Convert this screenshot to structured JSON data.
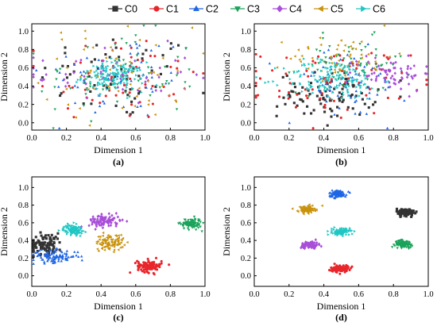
{
  "legend": {
    "entries": [
      {
        "label": "C0",
        "color": "#333333",
        "marker": "square"
      },
      {
        "label": "C1",
        "color": "#e8262b",
        "marker": "circle"
      },
      {
        "label": "C2",
        "color": "#1f66e5",
        "marker": "triangle-up"
      },
      {
        "label": "C3",
        "color": "#1aa35a",
        "marker": "triangle-down"
      },
      {
        "label": "C4",
        "color": "#a94fd9",
        "marker": "diamond"
      },
      {
        "label": "C5",
        "color": "#c9920b",
        "marker": "triangle-left"
      },
      {
        "label": "C6",
        "color": "#1fc7c3",
        "marker": "triangle-right"
      }
    ]
  },
  "chart_data": [
    {
      "type": "scatter",
      "panel_label": "(a)",
      "xlabel": "Dimension 1",
      "ylabel": "Dimension 2",
      "xlim": [
        0,
        1
      ],
      "ylim": [
        -0.08,
        1.08
      ],
      "xticks": [
        "0.0",
        "0.2",
        "0.4",
        "0.6",
        "0.8",
        "1.0"
      ],
      "yticks": [
        "0.0",
        "0.2",
        "0.4",
        "0.6",
        "0.8",
        "1.0"
      ],
      "series": [
        {
          "name": "C0",
          "cx": 0.5,
          "cy": 0.5,
          "sx": 0.23,
          "sy": 0.24,
          "n": 60
        },
        {
          "name": "C1",
          "cx": 0.5,
          "cy": 0.5,
          "sx": 0.24,
          "sy": 0.25,
          "n": 60
        },
        {
          "name": "C2",
          "cx": 0.5,
          "cy": 0.5,
          "sx": 0.22,
          "sy": 0.24,
          "n": 60
        },
        {
          "name": "C3",
          "cx": 0.5,
          "cy": 0.5,
          "sx": 0.24,
          "sy": 0.25,
          "n": 60
        },
        {
          "name": "C4",
          "cx": 0.47,
          "cy": 0.52,
          "sx": 0.23,
          "sy": 0.16,
          "n": 60
        },
        {
          "name": "C5",
          "cx": 0.5,
          "cy": 0.55,
          "sx": 0.22,
          "sy": 0.25,
          "n": 60
        },
        {
          "name": "C6",
          "cx": 0.47,
          "cy": 0.5,
          "sx": 0.09,
          "sy": 0.08,
          "n": 150
        }
      ]
    },
    {
      "type": "scatter",
      "panel_label": "(b)",
      "xlabel": "Dimension 1",
      "ylabel": "Dimension 2",
      "xlim": [
        0,
        1
      ],
      "ylim": [
        -0.08,
        1.08
      ],
      "xticks": [
        "0.0",
        "0.2",
        "0.4",
        "0.6",
        "0.8",
        "1.0"
      ],
      "yticks": [
        "0.0",
        "0.2",
        "0.4",
        "0.6",
        "0.8",
        "1.0"
      ],
      "series": [
        {
          "name": "C0",
          "cx": 0.42,
          "cy": 0.3,
          "sx": 0.14,
          "sy": 0.12,
          "n": 90
        },
        {
          "name": "C1",
          "cx": 0.45,
          "cy": 0.45,
          "sx": 0.22,
          "sy": 0.18,
          "n": 80
        },
        {
          "name": "C2",
          "cx": 0.52,
          "cy": 0.42,
          "sx": 0.18,
          "sy": 0.2,
          "n": 70
        },
        {
          "name": "C3",
          "cx": 0.55,
          "cy": 0.62,
          "sx": 0.15,
          "sy": 0.15,
          "n": 70
        },
        {
          "name": "C4",
          "cx": 0.78,
          "cy": 0.55,
          "sx": 0.12,
          "sy": 0.1,
          "n": 70
        },
        {
          "name": "C5",
          "cx": 0.5,
          "cy": 0.72,
          "sx": 0.15,
          "sy": 0.12,
          "n": 60
        },
        {
          "name": "C6",
          "cx": 0.45,
          "cy": 0.47,
          "sx": 0.14,
          "sy": 0.11,
          "n": 150
        }
      ]
    },
    {
      "type": "scatter",
      "panel_label": "(c)",
      "xlabel": "Dimension 1",
      "ylabel": "Dimension 2",
      "xlim": [
        0,
        1
      ],
      "ylim": [
        -0.12,
        1.12
      ],
      "xticks": [
        "0.0",
        "0.2",
        "0.4",
        "0.6",
        "0.8",
        "1.0"
      ],
      "yticks": [
        "0.0",
        "0.2",
        "0.4",
        "0.6",
        "0.8",
        "1.0"
      ],
      "series": [
        {
          "name": "C0",
          "cx": 0.08,
          "cy": 0.36,
          "sx": 0.05,
          "sy": 0.06,
          "n": 100
        },
        {
          "name": "C1",
          "cx": 0.68,
          "cy": 0.11,
          "sx": 0.035,
          "sy": 0.035,
          "n": 100
        },
        {
          "name": "C2",
          "cx": 0.13,
          "cy": 0.22,
          "sx": 0.07,
          "sy": 0.035,
          "n": 100
        },
        {
          "name": "C3",
          "cx": 0.92,
          "cy": 0.59,
          "sx": 0.03,
          "sy": 0.03,
          "n": 100
        },
        {
          "name": "C4",
          "cx": 0.42,
          "cy": 0.62,
          "sx": 0.045,
          "sy": 0.035,
          "n": 100
        },
        {
          "name": "C5",
          "cx": 0.45,
          "cy": 0.38,
          "sx": 0.04,
          "sy": 0.045,
          "n": 100
        },
        {
          "name": "C6",
          "cx": 0.24,
          "cy": 0.52,
          "sx": 0.028,
          "sy": 0.028,
          "n": 100
        }
      ]
    },
    {
      "type": "scatter",
      "panel_label": "(d)",
      "xlabel": "Dimension 1",
      "ylabel": "Dimension 2",
      "xlim": [
        0,
        1
      ],
      "ylim": [
        -0.12,
        1.12
      ],
      "xticks": [
        "0.0",
        "0.2",
        "0.4",
        "0.6",
        "0.8",
        "1.0"
      ],
      "yticks": [
        "0.0",
        "0.2",
        "0.4",
        "0.6",
        "0.8",
        "1.0"
      ],
      "series": [
        {
          "name": "C0",
          "cx": 0.87,
          "cy": 0.72,
          "sx": 0.025,
          "sy": 0.02,
          "n": 100
        },
        {
          "name": "C1",
          "cx": 0.49,
          "cy": 0.08,
          "sx": 0.025,
          "sy": 0.02,
          "n": 100
        },
        {
          "name": "C2",
          "cx": 0.48,
          "cy": 0.93,
          "sx": 0.025,
          "sy": 0.02,
          "n": 100
        },
        {
          "name": "C3",
          "cx": 0.86,
          "cy": 0.36,
          "sx": 0.025,
          "sy": 0.02,
          "n": 100
        },
        {
          "name": "C4",
          "cx": 0.32,
          "cy": 0.35,
          "sx": 0.025,
          "sy": 0.02,
          "n": 100
        },
        {
          "name": "C5",
          "cx": 0.3,
          "cy": 0.75,
          "sx": 0.025,
          "sy": 0.02,
          "n": 100
        },
        {
          "name": "C6",
          "cx": 0.5,
          "cy": 0.5,
          "sx": 0.025,
          "sy": 0.02,
          "n": 100
        }
      ]
    }
  ]
}
